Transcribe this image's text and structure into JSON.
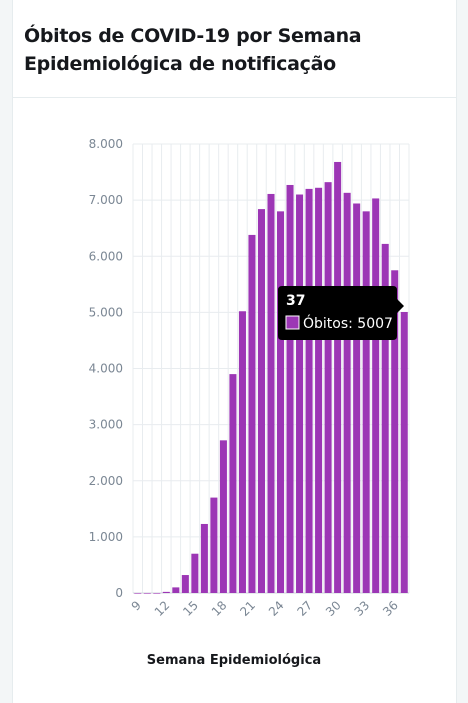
{
  "title": "Óbitos de COVID-19 por Semana Epidemiológica de notificação",
  "colors": {
    "bar": "#9c36b5",
    "grid": "#e8ecef",
    "tooltip_bg": "#000000"
  },
  "tooltip": {
    "title": "37",
    "label": "Óbitos: 5007"
  },
  "chart_data": {
    "type": "bar",
    "xlabel": "Semana Epidemiológica",
    "ylabel": "",
    "ylim": [
      0,
      8000
    ],
    "yticks": [
      0,
      1000,
      2000,
      3000,
      4000,
      5000,
      6000,
      7000,
      8000
    ],
    "ytick_labels": [
      "0",
      "1.000",
      "2.000",
      "3.000",
      "4.000",
      "5.000",
      "6.000",
      "7.000",
      "8.000"
    ],
    "xtick_labels": [
      "9",
      "12",
      "15",
      "18",
      "21",
      "24",
      "27",
      "30",
      "33",
      "36"
    ],
    "grid": true,
    "categories": [
      "9",
      "10",
      "11",
      "12",
      "13",
      "14",
      "15",
      "16",
      "17",
      "18",
      "19",
      "20",
      "21",
      "22",
      "23",
      "24",
      "25",
      "26",
      "27",
      "28",
      "29",
      "30",
      "31",
      "32",
      "33",
      "34",
      "35",
      "36",
      "37"
    ],
    "series": [
      {
        "values": [
          0,
          0,
          0,
          20,
          100,
          320,
          700,
          1230,
          1700,
          2720,
          3900,
          5020,
          6380,
          6840,
          7110,
          6800,
          7270,
          7100,
          7200,
          7220,
          7320,
          7680,
          7130,
          6940,
          6800,
          7030,
          6220,
          5750,
          5007
        ]
      }
    ]
  }
}
